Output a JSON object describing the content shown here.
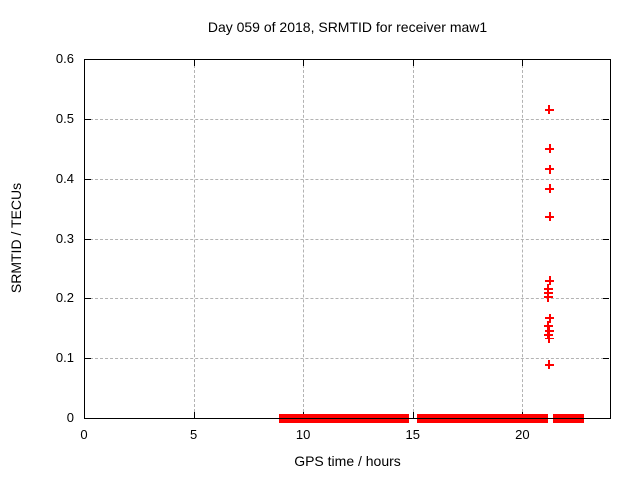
{
  "chart_data": {
    "type": "scatter",
    "title": "Day 059 of 2018, SRMTID for receiver maw1",
    "xlabel": "GPS time / hours",
    "ylabel": "SRMTID / TECUs",
    "xlim": [
      0,
      24
    ],
    "ylim": [
      0,
      0.6
    ],
    "x_ticks": [
      0,
      5,
      10,
      15,
      20
    ],
    "x_tick_labels": [
      "0",
      "5",
      "10",
      "15",
      "20"
    ],
    "y_ticks": [
      0,
      0.1,
      0.2,
      0.3,
      0.4,
      0.5,
      0.6
    ],
    "y_tick_labels": [
      "0",
      "0.1",
      "0.2",
      "0.3",
      "0.4",
      "0.5",
      "0.6"
    ],
    "grid": true,
    "legend_position": "none",
    "marker": "plus",
    "marker_color": "#ff0000",
    "grid_color": "#b3b3b3",
    "border_color": "#000000",
    "background_color": "#ffffff",
    "series": [
      {
        "name": "SRMTID",
        "points": [
          [
            21.22,
            0.515
          ],
          [
            21.25,
            0.45
          ],
          [
            21.25,
            0.416
          ],
          [
            21.25,
            0.383
          ],
          [
            21.25,
            0.336
          ],
          [
            21.25,
            0.229
          ],
          [
            21.18,
            0.216
          ],
          [
            21.18,
            0.209
          ],
          [
            21.18,
            0.202
          ],
          [
            21.25,
            0.167
          ],
          [
            21.18,
            0.154
          ],
          [
            21.22,
            0.146
          ],
          [
            21.18,
            0.139
          ],
          [
            21.22,
            0.133
          ],
          [
            21.22,
            0.089
          ]
        ]
      }
    ],
    "zero_band_segments_hours": [
      [
        8.92,
        14.82
      ],
      [
        15.2,
        21.15
      ],
      [
        21.4,
        22.8
      ]
    ],
    "zero_band_note": "dense run of points at SRMTID = 0 from about 9h to 22.8h, with brief gaps near 15.0h and 21.2h"
  }
}
